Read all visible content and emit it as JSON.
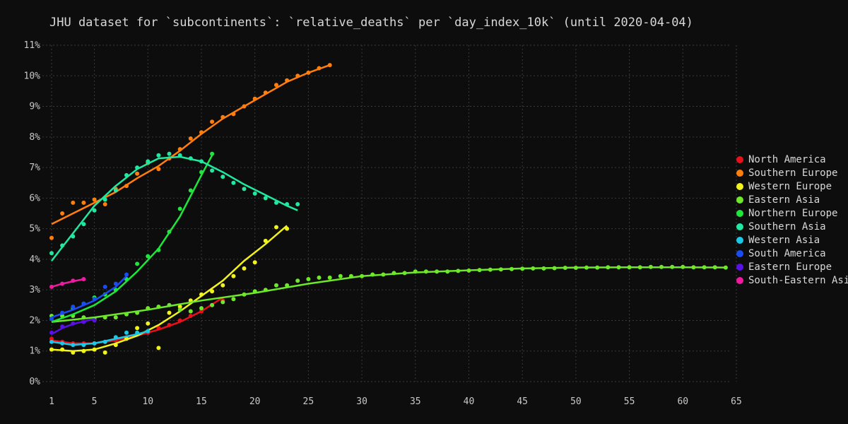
{
  "chart_data": {
    "type": "scatter",
    "title": "JHU dataset for `subcontinents`: `relative_deaths` per `day_index_10k` (until 2020-04-04)",
    "xlim": [
      1,
      65
    ],
    "ylim": [
      0,
      11
    ],
    "x_ticks": [
      1,
      5,
      10,
      15,
      20,
      25,
      30,
      35,
      40,
      45,
      50,
      55,
      60,
      65
    ],
    "y_ticks": [
      0,
      1,
      2,
      3,
      4,
      5,
      6,
      7,
      8,
      9,
      10,
      11
    ],
    "y_tick_labels": [
      "0%",
      "1%",
      "2%",
      "3%",
      "4%",
      "5%",
      "6%",
      "7%",
      "8%",
      "9%",
      "10%",
      "11%"
    ],
    "grid": true,
    "legend_position": "right",
    "series": [
      {
        "name": "North America",
        "color": "#e8101a",
        "points": [
          [
            1,
            1.4
          ],
          [
            2,
            1.3
          ],
          [
            3,
            1.25
          ],
          [
            4,
            1.25
          ],
          [
            5,
            1.25
          ],
          [
            6,
            1.3
          ],
          [
            7,
            1.35
          ],
          [
            8,
            1.45
          ],
          [
            9,
            1.55
          ],
          [
            10,
            1.6
          ],
          [
            11,
            1.75
          ],
          [
            12,
            1.85
          ],
          [
            13,
            2.0
          ],
          [
            14,
            2.15
          ],
          [
            15,
            2.3
          ],
          [
            16,
            2.5
          ],
          [
            17,
            2.65
          ]
        ],
        "fit": [
          [
            1,
            1.35
          ],
          [
            3,
            1.25
          ],
          [
            5,
            1.25
          ],
          [
            7,
            1.35
          ],
          [
            9,
            1.5
          ],
          [
            11,
            1.7
          ],
          [
            13,
            1.95
          ],
          [
            15,
            2.3
          ],
          [
            17,
            2.75
          ]
        ]
      },
      {
        "name": "Southern Europe",
        "color": "#ff7f0e",
        "points": [
          [
            1,
            4.7
          ],
          [
            2,
            5.5
          ],
          [
            3,
            5.85
          ],
          [
            4,
            5.85
          ],
          [
            5,
            5.95
          ],
          [
            6,
            5.8
          ],
          [
            7,
            6.3
          ],
          [
            8,
            6.4
          ],
          [
            9,
            6.8
          ],
          [
            10,
            7.15
          ],
          [
            11,
            6.95
          ],
          [
            12,
            7.3
          ],
          [
            13,
            7.6
          ],
          [
            14,
            7.95
          ],
          [
            15,
            8.15
          ],
          [
            16,
            8.5
          ],
          [
            17,
            8.65
          ],
          [
            18,
            8.75
          ],
          [
            19,
            9.0
          ],
          [
            20,
            9.25
          ],
          [
            21,
            9.45
          ],
          [
            22,
            9.7
          ],
          [
            23,
            9.85
          ],
          [
            24,
            10.0
          ],
          [
            25,
            10.1
          ],
          [
            26,
            10.25
          ],
          [
            27,
            10.35
          ]
        ],
        "fit": [
          [
            1,
            5.15
          ],
          [
            3,
            5.5
          ],
          [
            5,
            5.85
          ],
          [
            7,
            6.2
          ],
          [
            9,
            6.65
          ],
          [
            11,
            7.05
          ],
          [
            13,
            7.55
          ],
          [
            15,
            8.1
          ],
          [
            17,
            8.6
          ],
          [
            19,
            9.0
          ],
          [
            21,
            9.4
          ],
          [
            23,
            9.8
          ],
          [
            25,
            10.1
          ],
          [
            27,
            10.35
          ]
        ]
      },
      {
        "name": "Western Europe",
        "color": "#f2f21c",
        "points": [
          [
            1,
            1.05
          ],
          [
            2,
            1.05
          ],
          [
            3,
            0.95
          ],
          [
            4,
            1.0
          ],
          [
            5,
            1.05
          ],
          [
            6,
            0.95
          ],
          [
            7,
            1.2
          ],
          [
            8,
            1.4
          ],
          [
            9,
            1.75
          ],
          [
            10,
            1.9
          ],
          [
            11,
            1.1
          ],
          [
            12,
            2.25
          ],
          [
            13,
            2.45
          ],
          [
            14,
            2.65
          ],
          [
            15,
            2.85
          ],
          [
            16,
            2.95
          ],
          [
            17,
            3.15
          ],
          [
            18,
            3.45
          ],
          [
            19,
            3.7
          ],
          [
            20,
            3.9
          ],
          [
            21,
            4.6
          ],
          [
            22,
            5.05
          ],
          [
            23,
            5.0
          ]
        ],
        "fit": [
          [
            1,
            1.05
          ],
          [
            3,
            1.0
          ],
          [
            5,
            1.05
          ],
          [
            7,
            1.25
          ],
          [
            9,
            1.5
          ],
          [
            11,
            1.85
          ],
          [
            13,
            2.3
          ],
          [
            15,
            2.8
          ],
          [
            17,
            3.3
          ],
          [
            19,
            3.95
          ],
          [
            21,
            4.5
          ],
          [
            23,
            5.1
          ]
        ]
      },
      {
        "name": "Eastern Asia",
        "color": "#6ee82a",
        "points": [
          [
            1,
            2.15
          ],
          [
            2,
            2.15
          ],
          [
            3,
            2.15
          ],
          [
            4,
            2.1
          ],
          [
            5,
            2.05
          ],
          [
            6,
            2.1
          ],
          [
            7,
            2.1
          ],
          [
            8,
            2.2
          ],
          [
            9,
            2.25
          ],
          [
            10,
            2.4
          ],
          [
            11,
            2.45
          ],
          [
            12,
            2.5
          ],
          [
            13,
            2.35
          ],
          [
            14,
            2.3
          ],
          [
            15,
            2.4
          ],
          [
            16,
            2.5
          ],
          [
            17,
            2.6
          ],
          [
            18,
            2.7
          ],
          [
            19,
            2.85
          ],
          [
            20,
            2.95
          ],
          [
            21,
            3.0
          ],
          [
            22,
            3.15
          ],
          [
            23,
            3.15
          ],
          [
            24,
            3.3
          ],
          [
            25,
            3.35
          ],
          [
            26,
            3.4
          ],
          [
            27,
            3.4
          ],
          [
            28,
            3.45
          ],
          [
            29,
            3.45
          ],
          [
            30,
            3.45
          ],
          [
            31,
            3.5
          ],
          [
            32,
            3.5
          ],
          [
            33,
            3.55
          ],
          [
            34,
            3.55
          ],
          [
            35,
            3.6
          ],
          [
            36,
            3.6
          ],
          [
            37,
            3.6
          ],
          [
            38,
            3.6
          ],
          [
            39,
            3.62
          ],
          [
            40,
            3.63
          ],
          [
            41,
            3.65
          ],
          [
            42,
            3.66
          ],
          [
            43,
            3.67
          ],
          [
            44,
            3.68
          ],
          [
            45,
            3.69
          ],
          [
            46,
            3.7
          ],
          [
            47,
            3.7
          ],
          [
            48,
            3.71
          ],
          [
            49,
            3.72
          ],
          [
            50,
            3.72
          ],
          [
            51,
            3.73
          ],
          [
            52,
            3.73
          ],
          [
            53,
            3.74
          ],
          [
            54,
            3.74
          ],
          [
            55,
            3.74
          ],
          [
            56,
            3.74
          ],
          [
            57,
            3.75
          ],
          [
            58,
            3.75
          ],
          [
            59,
            3.75
          ],
          [
            60,
            3.75
          ],
          [
            61,
            3.74
          ],
          [
            62,
            3.74
          ],
          [
            63,
            3.74
          ],
          [
            64,
            3.73
          ]
        ],
        "fit": [
          [
            1,
            1.95
          ],
          [
            5,
            2.1
          ],
          [
            10,
            2.35
          ],
          [
            15,
            2.65
          ],
          [
            20,
            2.9
          ],
          [
            25,
            3.2
          ],
          [
            30,
            3.45
          ],
          [
            35,
            3.57
          ],
          [
            40,
            3.64
          ],
          [
            45,
            3.7
          ],
          [
            50,
            3.73
          ],
          [
            55,
            3.74
          ],
          [
            60,
            3.74
          ],
          [
            64,
            3.73
          ]
        ]
      },
      {
        "name": "Northern Europe",
        "color": "#1ee63a",
        "points": [
          [
            3,
            2.4
          ],
          [
            4,
            2.55
          ],
          [
            5,
            2.75
          ],
          [
            6,
            2.85
          ],
          [
            7,
            3.0
          ],
          [
            8,
            3.35
          ],
          [
            9,
            3.85
          ],
          [
            10,
            4.1
          ],
          [
            11,
            4.3
          ],
          [
            12,
            4.9
          ],
          [
            13,
            5.65
          ],
          [
            14,
            6.25
          ],
          [
            15,
            6.85
          ],
          [
            16,
            7.45
          ]
        ],
        "fit": [
          [
            1,
            1.95
          ],
          [
            3,
            2.2
          ],
          [
            5,
            2.5
          ],
          [
            7,
            2.95
          ],
          [
            9,
            3.6
          ],
          [
            11,
            4.35
          ],
          [
            13,
            5.4
          ],
          [
            15,
            6.75
          ],
          [
            16,
            7.4
          ]
        ]
      },
      {
        "name": "Southern Asia",
        "color": "#20e8a0",
        "points": [
          [
            1,
            4.2
          ],
          [
            2,
            4.45
          ],
          [
            3,
            4.75
          ],
          [
            4,
            5.15
          ],
          [
            5,
            5.6
          ],
          [
            6,
            5.95
          ],
          [
            7,
            6.25
          ],
          [
            8,
            6.75
          ],
          [
            9,
            7.0
          ],
          [
            10,
            7.2
          ],
          [
            11,
            7.4
          ],
          [
            12,
            7.45
          ],
          [
            13,
            7.4
          ],
          [
            14,
            7.3
          ],
          [
            15,
            7.2
          ],
          [
            16,
            6.9
          ],
          [
            17,
            6.7
          ],
          [
            18,
            6.5
          ],
          [
            19,
            6.3
          ],
          [
            20,
            6.15
          ],
          [
            21,
            6.0
          ],
          [
            22,
            5.85
          ],
          [
            23,
            5.8
          ],
          [
            24,
            5.8
          ]
        ],
        "fit": [
          [
            1,
            3.95
          ],
          [
            3,
            4.85
          ],
          [
            5,
            5.75
          ],
          [
            7,
            6.4
          ],
          [
            9,
            6.95
          ],
          [
            11,
            7.3
          ],
          [
            13,
            7.35
          ],
          [
            15,
            7.2
          ],
          [
            17,
            6.85
          ],
          [
            19,
            6.45
          ],
          [
            21,
            6.1
          ],
          [
            23,
            5.75
          ],
          [
            24,
            5.6
          ]
        ]
      },
      {
        "name": "Western Asia",
        "color": "#1ac8e8",
        "points": [
          [
            1,
            1.3
          ],
          [
            2,
            1.25
          ],
          [
            3,
            1.2
          ],
          [
            4,
            1.2
          ],
          [
            5,
            1.25
          ],
          [
            6,
            1.3
          ],
          [
            7,
            1.45
          ],
          [
            8,
            1.6
          ],
          [
            9,
            1.6
          ],
          [
            10,
            1.65
          ]
        ],
        "fit": [
          [
            1,
            1.3
          ],
          [
            3,
            1.2
          ],
          [
            5,
            1.25
          ],
          [
            7,
            1.4
          ],
          [
            9,
            1.55
          ],
          [
            10,
            1.65
          ]
        ]
      },
      {
        "name": "South America",
        "color": "#1a4cf2",
        "points": [
          [
            1,
            2.05
          ],
          [
            2,
            2.25
          ],
          [
            3,
            2.45
          ],
          [
            4,
            2.55
          ],
          [
            5,
            2.7
          ],
          [
            6,
            3.1
          ],
          [
            7,
            3.2
          ],
          [
            8,
            3.5
          ]
        ],
        "fit": [
          [
            1,
            2.1
          ],
          [
            3,
            2.35
          ],
          [
            5,
            2.65
          ],
          [
            7,
            3.1
          ],
          [
            8,
            3.45
          ]
        ]
      },
      {
        "name": "Eastern Europe",
        "color": "#5a10e8",
        "points": [
          [
            1,
            1.6
          ],
          [
            2,
            1.8
          ],
          [
            3,
            1.9
          ],
          [
            4,
            1.95
          ],
          [
            5,
            2.0
          ]
        ],
        "fit": [
          [
            1,
            1.55
          ],
          [
            2,
            1.75
          ],
          [
            3,
            1.88
          ],
          [
            4,
            1.97
          ],
          [
            5,
            2.05
          ]
        ]
      },
      {
        "name": "South-Eastern Asia",
        "color": "#f01aa0",
        "points": [
          [
            1,
            3.1
          ],
          [
            2,
            3.2
          ],
          [
            3,
            3.3
          ],
          [
            4,
            3.35
          ]
        ],
        "fit": [
          [
            1,
            3.1
          ],
          [
            2,
            3.2
          ],
          [
            3,
            3.28
          ],
          [
            4,
            3.35
          ]
        ]
      }
    ]
  }
}
